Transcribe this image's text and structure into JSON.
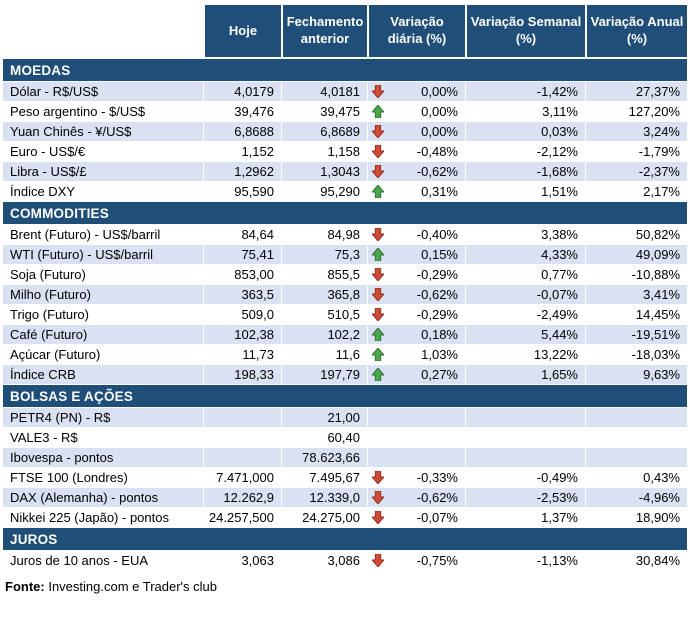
{
  "header": {
    "columns": [
      "Hoje",
      "Fechamento anterior",
      "Variação diária (%)",
      "Variação Semanal (%)",
      "Variação Anual (%)"
    ]
  },
  "sections": [
    {
      "title": "MOEDAS",
      "rows": [
        {
          "label": "Dólar - R$/US$",
          "hoje": "4,0179",
          "fechamento": "4,0181",
          "dir": "down",
          "diaria": "0,00%",
          "semanal": "-1,42%",
          "anual": "27,37%"
        },
        {
          "label": "Peso argentino - $/US$",
          "hoje": "39,476",
          "fechamento": "39,475",
          "dir": "up",
          "diaria": "0,00%",
          "semanal": "3,11%",
          "anual": "127,20%"
        },
        {
          "label": "Yuan Chinês - ¥/US$",
          "hoje": "6,8688",
          "fechamento": "6,8689",
          "dir": "down",
          "diaria": "0,00%",
          "semanal": "0,03%",
          "anual": "3,24%"
        },
        {
          "label": "Euro - US$/€",
          "hoje": "1,152",
          "fechamento": "1,158",
          "dir": "down",
          "diaria": "-0,48%",
          "semanal": "-2,12%",
          "anual": "-1,79%"
        },
        {
          "label": "Libra - US$/£",
          "hoje": "1,2962",
          "fechamento": "1,3043",
          "dir": "down",
          "diaria": "-0,62%",
          "semanal": "-1,68%",
          "anual": "-2,37%"
        },
        {
          "label": "Índice DXY",
          "hoje": "95,590",
          "fechamento": "95,290",
          "dir": "up",
          "diaria": "0,31%",
          "semanal": "1,51%",
          "anual": "2,17%"
        }
      ]
    },
    {
      "title": "COMMODITIES",
      "rows": [
        {
          "label": "Brent (Futuro) - US$/barril",
          "hoje": "84,64",
          "fechamento": "84,98",
          "dir": "down",
          "diaria": "-0,40%",
          "semanal": "3,38%",
          "anual": "50,82%"
        },
        {
          "label": "WTI (Futuro) - US$/barril",
          "hoje": "75,41",
          "fechamento": "75,3",
          "dir": "up",
          "diaria": "0,15%",
          "semanal": "4,33%",
          "anual": "49,09%"
        },
        {
          "label": "Soja (Futuro)",
          "hoje": "853,00",
          "fechamento": "855,5",
          "dir": "down",
          "diaria": "-0,29%",
          "semanal": "0,77%",
          "anual": "-10,88%"
        },
        {
          "label": "Milho (Futuro)",
          "hoje": "363,5",
          "fechamento": "365,8",
          "dir": "down",
          "diaria": "-0,62%",
          "semanal": "-0,07%",
          "anual": "3,41%"
        },
        {
          "label": "Trigo (Futuro)",
          "hoje": "509,0",
          "fechamento": "510,5",
          "dir": "down",
          "diaria": "-0,29%",
          "semanal": "-2,49%",
          "anual": "14,45%"
        },
        {
          "label": "Café (Futuro)",
          "hoje": "102,38",
          "fechamento": "102,2",
          "dir": "up",
          "diaria": "0,18%",
          "semanal": "5,44%",
          "anual": "-19,51%"
        },
        {
          "label": "Açúcar (Futuro)",
          "hoje": "11,73",
          "fechamento": "11,6",
          "dir": "up",
          "diaria": "1,03%",
          "semanal": "13,22%",
          "anual": "-18,03%"
        },
        {
          "label": "Índice CRB",
          "hoje": "198,33",
          "fechamento": "197,79",
          "dir": "up",
          "diaria": "0,27%",
          "semanal": "1,65%",
          "anual": "9,63%"
        }
      ]
    },
    {
      "title": "BOLSAS E AÇÕES",
      "rows": [
        {
          "label": "PETR4 (PN) - R$",
          "hoje": "",
          "fechamento": "21,00",
          "diaria": "",
          "semanal": "",
          "anual": ""
        },
        {
          "label": "VALE3 - R$",
          "hoje": "",
          "fechamento": "60,40",
          "diaria": "",
          "semanal": "",
          "anual": ""
        },
        {
          "label": "Ibovespa - pontos",
          "hoje": "",
          "fechamento": "78.623,66",
          "diaria": "",
          "semanal": "",
          "anual": ""
        },
        {
          "label": "FTSE 100 (Londres)",
          "hoje": "7.471,000",
          "fechamento": "7.495,67",
          "dir": "down",
          "diaria": "-0,33%",
          "semanal": "-0,49%",
          "anual": "0,43%"
        },
        {
          "label": "DAX (Alemanha) - pontos",
          "hoje": "12.262,9",
          "fechamento": "12.339,0",
          "dir": "down",
          "diaria": "-0,62%",
          "semanal": "-2,53%",
          "anual": "-4,96%"
        },
        {
          "label": "Nikkei 225 (Japão) - pontos",
          "hoje": "24.257,500",
          "fechamento": "24.275,00",
          "dir": "down",
          "diaria": "-0,07%",
          "semanal": "1,37%",
          "anual": "18,90%"
        }
      ]
    },
    {
      "title": "JUROS",
      "rows": [
        {
          "label": "Juros de 10 anos - EUA",
          "hoje": "3,063",
          "fechamento": "3,086",
          "dir": "down",
          "diaria": "-0,75%",
          "semanal": "-1,13%",
          "anual": "30,84%"
        }
      ]
    }
  ],
  "footer": {
    "source_label": "Fonte:",
    "source_text": " Investing.com e Trader's club"
  },
  "icons": {
    "up": "up-arrow-icon",
    "down": "down-arrow-icon"
  },
  "colors": {
    "header_bg": "#1F4E79",
    "band_bg": "#1F4E79",
    "row_alt_bg": "#D9E1F2",
    "arrow_down": "#CE4B37",
    "arrow_down_dark": "#8E2A1E",
    "arrow_up": "#4BA64F",
    "arrow_up_dark": "#2F6B2A"
  }
}
